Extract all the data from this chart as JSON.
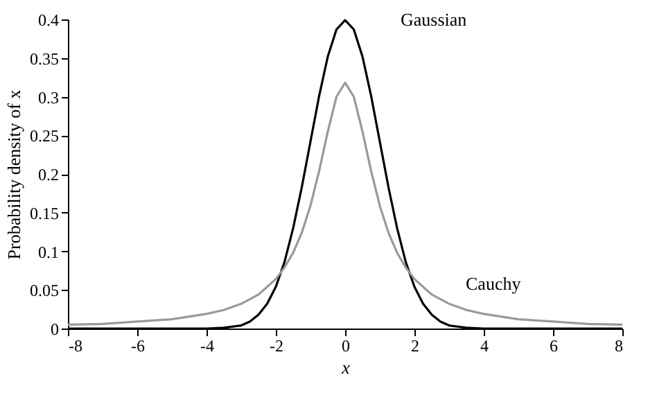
{
  "chart_data": {
    "type": "line",
    "xlabel": "x",
    "ylabel": "Probability density of x",
    "xlim": [
      -8,
      8
    ],
    "ylim": [
      0,
      0.4
    ],
    "xticks": [
      -8,
      -6,
      -4,
      -2,
      0,
      2,
      4,
      6,
      8
    ],
    "yticks": [
      0,
      0.05,
      0.1,
      0.15,
      0.2,
      0.25,
      0.3,
      0.35,
      0.4
    ],
    "grid": false,
    "legend": false,
    "marker": "none",
    "line_style": "solid",
    "series": [
      {
        "name": "Gaussian",
        "color": "#000000",
        "x": [
          -8,
          -4,
          -3.5,
          -3,
          -2.75,
          -2.5,
          -2.25,
          -2,
          -1.75,
          -1.5,
          -1.25,
          -1,
          -0.75,
          -0.5,
          -0.25,
          0,
          0.25,
          0.5,
          0.75,
          1,
          1.25,
          1.5,
          1.75,
          2,
          2.25,
          2.5,
          2.75,
          3,
          3.5,
          4,
          8
        ],
        "values": [
          0,
          0,
          0.001,
          0.004,
          0.009,
          0.018,
          0.032,
          0.054,
          0.086,
          0.13,
          0.183,
          0.242,
          0.301,
          0.352,
          0.387,
          0.399,
          0.387,
          0.352,
          0.301,
          0.242,
          0.183,
          0.13,
          0.086,
          0.054,
          0.032,
          0.018,
          0.009,
          0.004,
          0.001,
          0,
          0
        ]
      },
      {
        "name": "Cauchy",
        "color": "#999999",
        "x": [
          -8,
          -7,
          -6,
          -5,
          -4,
          -3.5,
          -3,
          -2.5,
          -2,
          -1.75,
          -1.5,
          -1.25,
          -1,
          -0.75,
          -0.5,
          -0.25,
          0,
          0.25,
          0.5,
          0.75,
          1,
          1.25,
          1.5,
          1.75,
          2,
          2.5,
          3,
          3.5,
          4,
          5,
          6,
          7,
          8
        ],
        "values": [
          0.005,
          0.006,
          0.009,
          0.012,
          0.019,
          0.024,
          0.032,
          0.044,
          0.064,
          0.079,
          0.098,
          0.124,
          0.159,
          0.204,
          0.255,
          0.3,
          0.318,
          0.3,
          0.255,
          0.204,
          0.159,
          0.124,
          0.098,
          0.079,
          0.064,
          0.044,
          0.032,
          0.024,
          0.019,
          0.012,
          0.009,
          0.006,
          0.005
        ]
      }
    ]
  }
}
